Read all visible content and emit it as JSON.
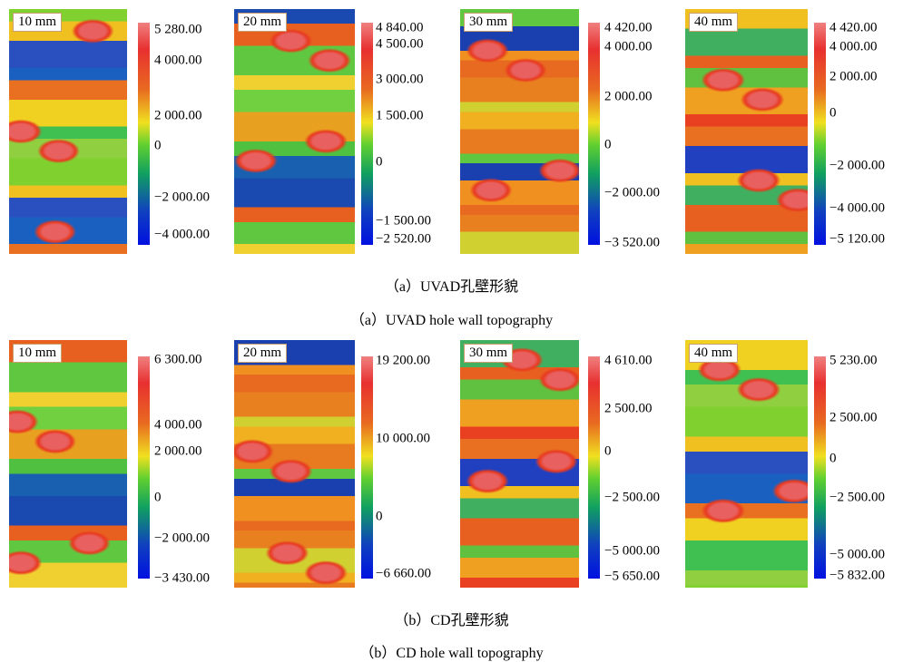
{
  "figure": {
    "rows": [
      {
        "panels": [
          {
            "label": "10 mm",
            "ticks": [
              "5 280.00",
              "4 000.00",
              "2 000.00",
              "0",
              "−2 000.00",
              "−4 000.00"
            ]
          },
          {
            "label": "20 mm",
            "ticks": [
              "4 840.00",
              "4 500.00",
              "3 000.00",
              "1 500.00",
              "0",
              "−1 500.00",
              "−2 520.00"
            ]
          },
          {
            "label": "30 mm",
            "ticks": [
              "4 420.00",
              "4 000.00",
              "2 000.00",
              "0",
              "−2 000.00",
              "−3 520.00"
            ]
          },
          {
            "label": "40 mm",
            "ticks": [
              "4 420.00",
              "4 000.00",
              "2 000.00",
              "0",
              "−2 000.00",
              "−4 000.00",
              "−5 120.00"
            ]
          }
        ],
        "caption_cn": "（a）UVAD孔壁形貌",
        "caption_en": "（a）UVAD hole wall topography"
      },
      {
        "panels": [
          {
            "label": "10 mm",
            "ticks": [
              "6 300.00",
              "4 000.00",
              "2 000.00",
              "0",
              "−2 000.00",
              "−3 430.00"
            ]
          },
          {
            "label": "20 mm",
            "ticks": [
              "19 200.00",
              "10 000.00",
              "0",
              "−6 660.00"
            ]
          },
          {
            "label": "30 mm",
            "ticks": [
              "4 610.00",
              "2 500.00",
              "0",
              "−2 500.00",
              "−5 000.00",
              "−5 650.00"
            ]
          },
          {
            "label": "40 mm",
            "ticks": [
              "5 230.00",
              "2 500.00",
              "0",
              "−2 500.00",
              "−5 000.00",
              "−5 832.00"
            ]
          }
        ],
        "caption_cn": "（b）CD孔壁形貌",
        "caption_en": "（b）CD hole wall topography"
      }
    ]
  }
}
